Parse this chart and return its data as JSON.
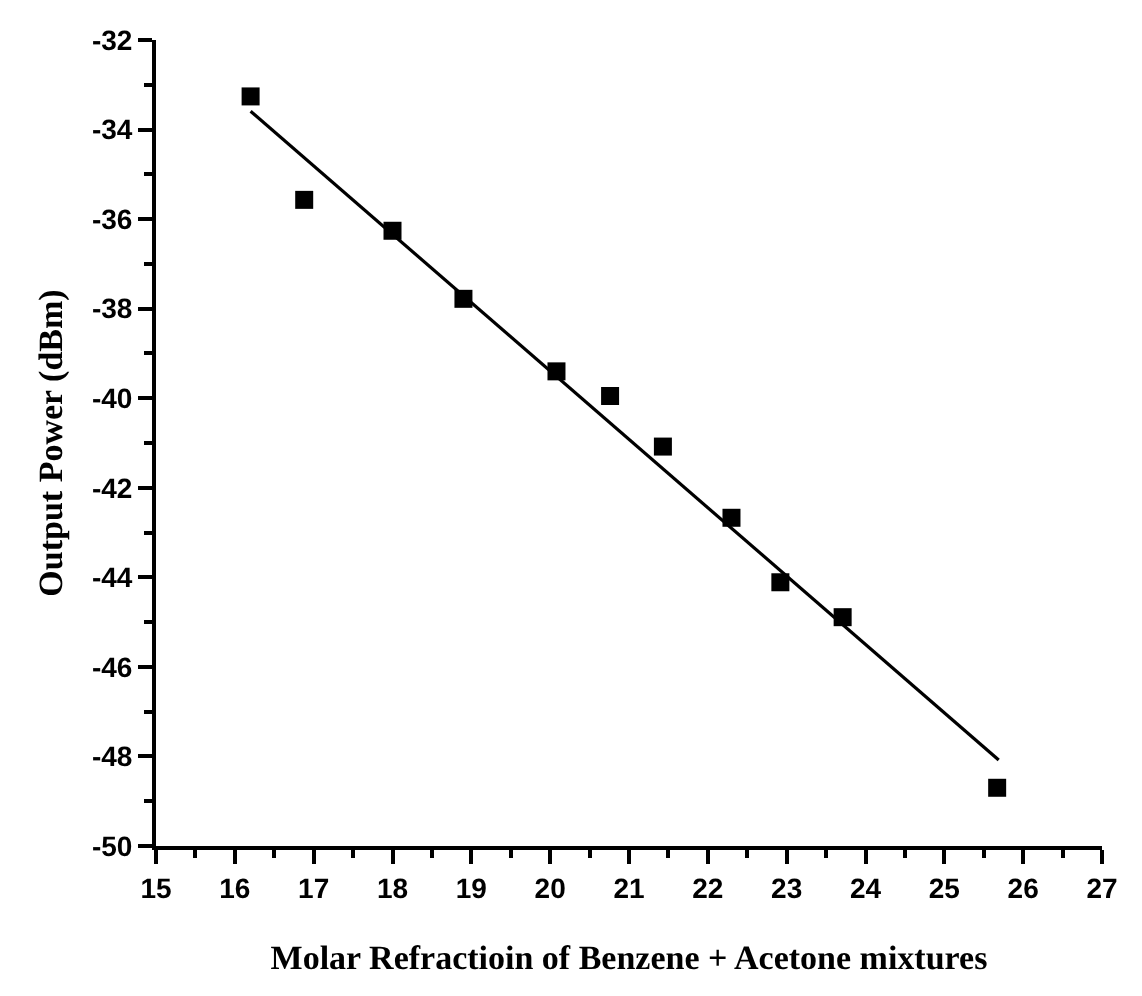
{
  "chart_data": {
    "type": "scatter",
    "xlabel": "Molar Refractioin of Benzene + Acetone mixtures",
    "ylabel": "Output Power (dBm)",
    "marker": "square",
    "xlim": [
      15,
      27
    ],
    "ylim": [
      -50,
      -32
    ],
    "xticks": [
      15,
      {
        "value": 15.5,
        "label": null
      },
      16,
      {
        "value": 16.5,
        "label": null
      },
      17,
      {
        "value": 17.5,
        "label": null
      },
      18,
      {
        "value": 18.5,
        "label": null
      },
      19,
      {
        "value": 19.5,
        "label": null
      },
      20,
      {
        "value": 20.5,
        "label": null
      },
      21,
      {
        "value": 21.5,
        "label": null
      },
      22,
      {
        "value": 22.5,
        "label": null
      },
      23,
      {
        "value": 23.5,
        "label": null
      },
      24,
      {
        "value": 24.5,
        "label": null
      },
      25,
      {
        "value": 25.5,
        "label": null
      },
      26,
      {
        "value": 26.5,
        "label": null
      },
      27
    ],
    "yticks": [
      -50,
      {
        "value": -49,
        "label": null
      },
      -48,
      {
        "value": -47,
        "label": null
      },
      -46,
      {
        "value": -45,
        "label": null
      },
      -44,
      {
        "value": -43,
        "label": null
      },
      -42,
      {
        "value": -41,
        "label": null
      },
      -40,
      {
        "value": -39,
        "label": null
      },
      -38,
      {
        "value": -37,
        "label": null
      },
      -36,
      {
        "value": -35,
        "label": null
      },
      -34,
      {
        "value": -33,
        "label": null
      },
      -32
    ],
    "series": [
      {
        "type": "scatter",
        "color": "#000000",
        "x": [
          16.2,
          16.88,
          18.0,
          18.9,
          20.08,
          20.76,
          21.43,
          22.3,
          22.92,
          23.71,
          25.67
        ],
        "values": [
          -33.26,
          -35.57,
          -36.26,
          -37.78,
          -39.4,
          -39.95,
          -41.08,
          -42.67,
          -44.11,
          -44.89,
          -48.7
        ]
      },
      {
        "type": "line",
        "color": "#000000",
        "marker": "none",
        "line_style": "solid",
        "x": [
          16.2,
          25.69
        ],
        "values": [
          -33.59,
          -48.08
        ]
      }
    ]
  }
}
